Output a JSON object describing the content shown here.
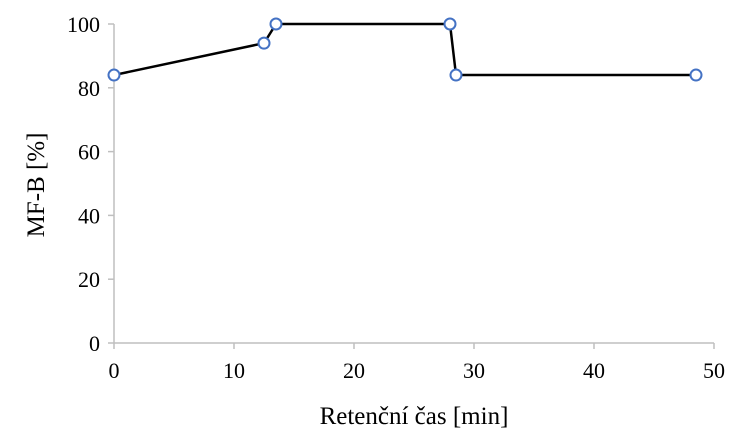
{
  "chart_data": {
    "type": "line",
    "title": "",
    "xlabel": "Retenční čas [min]",
    "ylabel": "MF-B [%]",
    "xlim": [
      0,
      50
    ],
    "ylim": [
      0,
      100
    ],
    "x_ticks": [
      0,
      10,
      20,
      30,
      40,
      50
    ],
    "y_ticks": [
      0,
      20,
      40,
      60,
      80,
      100
    ],
    "x_tick_labels": [
      "0",
      "10",
      "20",
      "30",
      "40",
      "50"
    ],
    "y_tick_labels": [
      "0",
      "20",
      "40",
      "60",
      "80",
      "100"
    ],
    "grid": false,
    "legend": "none",
    "line_color": "#000000",
    "marker_color": "#4472c4",
    "marker": "hollow-circle",
    "series": [
      {
        "x": [
          0,
          12.5,
          13.5,
          28,
          28.5,
          48.5
        ],
        "y": [
          84,
          94,
          100,
          100,
          84,
          84
        ]
      }
    ]
  }
}
